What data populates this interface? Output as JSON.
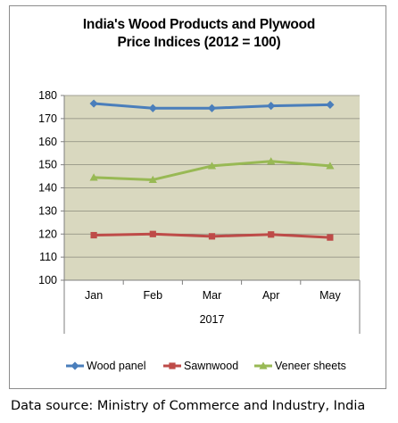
{
  "chart_data": {
    "type": "line",
    "title_line1": "India's Wood Products and Plywood",
    "title_line2": "Price Indices (2012 = 100)",
    "categories": [
      "Jan",
      "Feb",
      "Mar",
      "Apr",
      "May"
    ],
    "category_group_label": "2017",
    "ylim": [
      100,
      180
    ],
    "yticks": [
      100,
      110,
      120,
      130,
      140,
      150,
      160,
      170,
      180
    ],
    "grid": true,
    "legend_position": "bottom",
    "plot_background": "#d9d8bf",
    "series": [
      {
        "name": "Wood panel",
        "values": [
          176.5,
          174.5,
          174.5,
          175.5,
          176
        ],
        "color": "#4a7ebb",
        "marker": "diamond"
      },
      {
        "name": "Sawnwood",
        "values": [
          119.5,
          120,
          119,
          119.8,
          118.5
        ],
        "color": "#be4b48",
        "marker": "square"
      },
      {
        "name": "Veneer sheets",
        "values": [
          144.5,
          143.5,
          149.5,
          151.5,
          149.5
        ],
        "color": "#98b954",
        "marker": "triangle"
      }
    ]
  },
  "source_text": "Data source: Ministry of Commerce and Industry, India"
}
